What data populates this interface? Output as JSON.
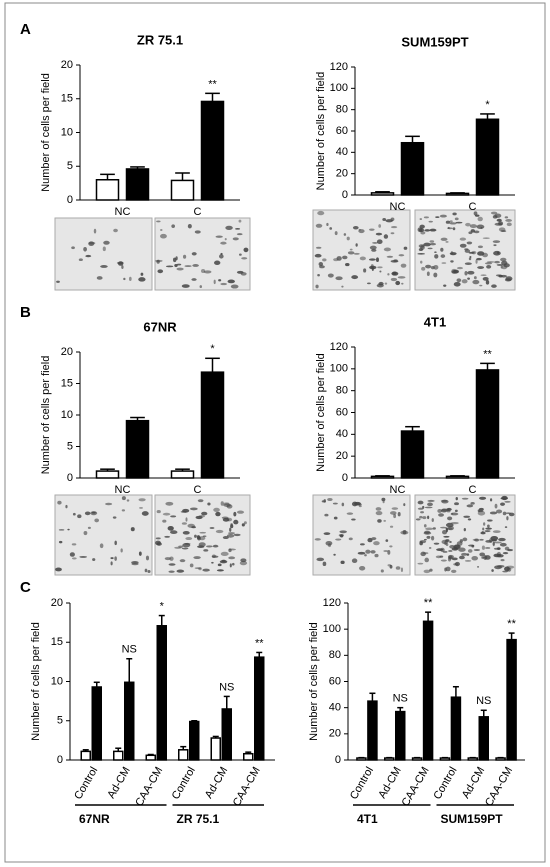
{
  "panels": [
    "A",
    "B",
    "C"
  ],
  "chart_data": [
    {
      "type": "bar",
      "title": "ZR 75.1",
      "ylabel": "Number of cells per field",
      "categories": [
        "NC",
        "C"
      ],
      "series": [
        {
          "color": "#ffffff",
          "values": [
            3.0,
            2.9
          ],
          "errors": [
            0.8,
            1.1
          ]
        },
        {
          "color": "#000000",
          "values": [
            4.6,
            14.6
          ],
          "errors": [
            0.3,
            1.2
          ]
        }
      ],
      "annotations": [
        null,
        "**"
      ],
      "ylim": [
        0,
        20
      ],
      "yticks": [
        0,
        5,
        10,
        15,
        20
      ]
    },
    {
      "type": "bar",
      "title": "SUM159PT",
      "ylabel": "Number of cells per field",
      "categories": [
        "NC",
        "C"
      ],
      "series": [
        {
          "color": "#ffffff",
          "values": [
            2,
            1.5
          ],
          "errors": [
            1,
            0.5
          ]
        },
        {
          "color": "#000000",
          "values": [
            49,
            71
          ],
          "errors": [
            6,
            5
          ]
        }
      ],
      "annotations": [
        null,
        "*"
      ],
      "ylim": [
        0,
        120
      ],
      "yticks": [
        0,
        20,
        40,
        60,
        80,
        100,
        120
      ]
    },
    {
      "type": "bar",
      "title": "67NR",
      "ylabel": "Number of cells per field",
      "categories": [
        "NC",
        "C"
      ],
      "series": [
        {
          "color": "#ffffff",
          "values": [
            1.1,
            1.1
          ],
          "errors": [
            0.3,
            0.3
          ]
        },
        {
          "color": "#000000",
          "values": [
            9.1,
            16.8
          ],
          "errors": [
            0.5,
            2.2
          ]
        }
      ],
      "annotations": [
        null,
        "*"
      ],
      "ylim": [
        0,
        20
      ],
      "yticks": [
        0,
        5,
        10,
        15,
        20
      ]
    },
    {
      "type": "bar",
      "title": "4T1",
      "ylabel": "Number of cells per field",
      "categories": [
        "NC",
        "C"
      ],
      "series": [
        {
          "color": "#ffffff",
          "values": [
            1.5,
            1.5
          ],
          "errors": [
            0.5,
            0.5
          ]
        },
        {
          "color": "#000000",
          "values": [
            43,
            99
          ],
          "errors": [
            4,
            6
          ]
        }
      ],
      "annotations": [
        null,
        "**"
      ],
      "ylim": [
        0,
        120
      ],
      "yticks": [
        0,
        20,
        40,
        60,
        80,
        100,
        120
      ]
    },
    {
      "type": "bar",
      "ylabel": "Number of cells per field",
      "categories": [
        "Control",
        "Ad-CM",
        "CAA-CM",
        "Control",
        "Ad-CM",
        "CAA-CM"
      ],
      "groups": [
        "67NR",
        "ZR 75.1"
      ],
      "series": [
        {
          "color": "#ffffff",
          "values": [
            1.1,
            1.1,
            0.6,
            1.3,
            2.8,
            0.8
          ],
          "errors": [
            0.2,
            0.4,
            0.1,
            0.4,
            0.2,
            0.2
          ]
        },
        {
          "color": "#000000",
          "values": [
            9.3,
            9.9,
            17.1,
            4.9,
            6.5,
            13.1
          ],
          "errors": [
            0.6,
            3.0,
            1.3,
            0.1,
            1.6,
            0.6
          ]
        }
      ],
      "annotations": [
        null,
        "NS",
        "*",
        null,
        "NS",
        "**"
      ],
      "ylim": [
        0,
        20
      ],
      "yticks": [
        0,
        5,
        10,
        15,
        20
      ]
    },
    {
      "type": "bar",
      "ylabel": "Number of cells per field",
      "categories": [
        "Control",
        "Ad-CM",
        "CAA-CM",
        "Control",
        "Ad-CM",
        "CAA-CM"
      ],
      "groups": [
        "4T1",
        "SUM159PT"
      ],
      "series": [
        {
          "color": "#ffffff",
          "values": [
            1.5,
            1.5,
            1.5,
            1.5,
            1.5,
            1.5
          ],
          "errors": [
            0.3,
            0.3,
            0.3,
            0.3,
            0.3,
            0.3
          ]
        },
        {
          "color": "#000000",
          "values": [
            45,
            37,
            106,
            48,
            33,
            92
          ],
          "errors": [
            6,
            3,
            7,
            8,
            5,
            5
          ]
        }
      ],
      "annotations": [
        null,
        "NS",
        "**",
        null,
        "NS",
        "**"
      ],
      "ylim": [
        0,
        120
      ],
      "yticks": [
        0,
        20,
        40,
        60,
        80,
        100,
        120
      ]
    }
  ]
}
